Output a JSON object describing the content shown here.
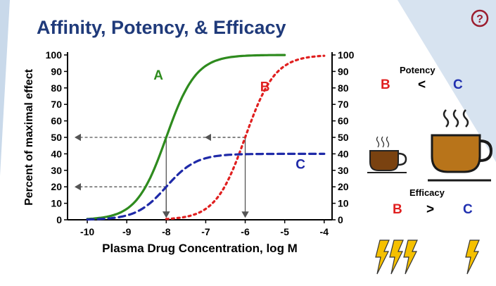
{
  "slide": {
    "title": "Affinity, Potency, & Efficacy",
    "help_icon": "question-circle-icon"
  },
  "chart_data": {
    "type": "line",
    "title": "",
    "xlabel": "Plasma Drug Concentration, log M",
    "ylabel": "Percent of maximal effect",
    "xlim": [
      -10.5,
      -3.8
    ],
    "ylim": [
      0,
      100
    ],
    "x_ticks": [
      -10,
      -9,
      -8,
      -7,
      -6,
      -5,
      -4
    ],
    "y_ticks": [
      0,
      10,
      20,
      30,
      40,
      50,
      60,
      70,
      80,
      90,
      100
    ],
    "right_axis_ticks": [
      0,
      10,
      20,
      30,
      40,
      50,
      60,
      70,
      80,
      90,
      100
    ],
    "grid": false,
    "series": [
      {
        "name": "A",
        "color": "#2e8b1e",
        "style": "solid",
        "emax": 100,
        "ec50_log": -8,
        "x_range": [
          -10,
          -5
        ]
      },
      {
        "name": "B",
        "color": "#e02020",
        "style": "dotted",
        "emax": 100,
        "ec50_log": -6,
        "x_range": [
          -8,
          -4
        ]
      },
      {
        "name": "C",
        "color": "#1f2aa8",
        "style": "dashed",
        "emax": 40,
        "ec50_log": -8,
        "x_range": [
          -10,
          -4
        ]
      }
    ],
    "reference_lines": [
      {
        "y": 50,
        "x_from": -6,
        "x_to": -10.3,
        "drop_x": -8
      },
      {
        "y": 50,
        "x_from": -6,
        "x_to": -7,
        "drop_x": -6
      },
      {
        "y": 20,
        "x_from": -8,
        "x_to": -10.3,
        "drop_x": -8
      }
    ]
  },
  "comparisons": {
    "potency_label": "Potency",
    "potency_left": "B",
    "potency_op": "<",
    "potency_right": "C",
    "efficacy_label": "Efficacy",
    "efficacy_left": "B",
    "efficacy_op": ">",
    "efficacy_right": "C",
    "small_cup_icon": "coffee-cup-small-icon",
    "large_cup_icon": "coffee-cup-large-icon",
    "bolt_icon": "lightning-bolt-icon"
  },
  "colors": {
    "title": "#1f3a7a",
    "A": "#2e8b1e",
    "B": "#e02020",
    "C": "#1f2aa8",
    "coffee": "#b8741a"
  }
}
